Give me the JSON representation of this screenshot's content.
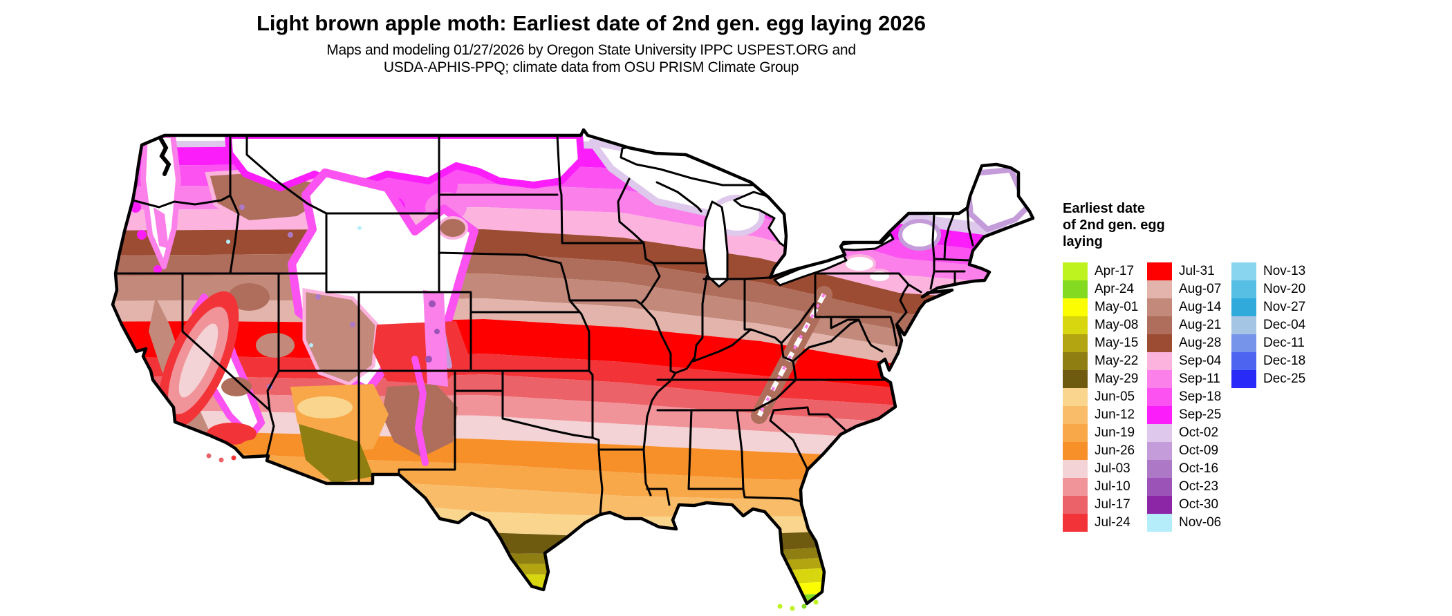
{
  "title": "Light brown apple moth: Earliest date of 2nd gen. egg laying 2026",
  "subtitle_line1": "Maps and modeling 01/27/2026 by Oregon State University IPPC USPEST.ORG and",
  "subtitle_line2": "USDA-APHIS-PPQ; climate data from OSU PRISM Climate Group",
  "legend": {
    "title_lines": [
      "Earliest date",
      "of 2nd gen. egg",
      "laying"
    ],
    "columns": [
      [
        {
          "label": "Apr-17",
          "color": "#bff31f"
        },
        {
          "label": "Apr-24",
          "color": "#83da20"
        },
        {
          "label": "May-01",
          "color": "#fdfd02"
        },
        {
          "label": "May-08",
          "color": "#d8d60e"
        },
        {
          "label": "May-15",
          "color": "#b2a511"
        },
        {
          "label": "May-22",
          "color": "#8f7e12"
        },
        {
          "label": "May-29",
          "color": "#6e5b10"
        },
        {
          "label": "Jun-05",
          "color": "#f9d58d"
        },
        {
          "label": "Jun-12",
          "color": "#f9bd6a"
        },
        {
          "label": "Jun-19",
          "color": "#f8a749"
        },
        {
          "label": "Jun-26",
          "color": "#f79029"
        },
        {
          "label": "Jul-03",
          "color": "#f3d3d5"
        },
        {
          "label": "Jul-10",
          "color": "#f0949a"
        },
        {
          "label": "Jul-17",
          "color": "#ec6269"
        },
        {
          "label": "Jul-24",
          "color": "#f23338"
        }
      ],
      [
        {
          "label": "Jul-31",
          "color": "#fe0000"
        },
        {
          "label": "Aug-07",
          "color": "#e2b4ac"
        },
        {
          "label": "Aug-14",
          "color": "#c38a7b"
        },
        {
          "label": "Aug-21",
          "color": "#af6e5b"
        },
        {
          "label": "Aug-28",
          "color": "#9d4c34"
        },
        {
          "label": "Sep-04",
          "color": "#fcb4df"
        },
        {
          "label": "Sep-11",
          "color": "#fb80ea"
        },
        {
          "label": "Sep-18",
          "color": "#fb52f1"
        },
        {
          "label": "Sep-25",
          "color": "#fb1efb"
        },
        {
          "label": "Oct-02",
          "color": "#dec8ec"
        },
        {
          "label": "Oct-09",
          "color": "#c49cda"
        },
        {
          "label": "Oct-16",
          "color": "#ad79c7"
        },
        {
          "label": "Oct-23",
          "color": "#9c53b7"
        },
        {
          "label": "Oct-30",
          "color": "#8d25a7"
        },
        {
          "label": "Nov-06",
          "color": "#b5eefa"
        }
      ],
      [
        {
          "label": "Nov-13",
          "color": "#89d5f0"
        },
        {
          "label": "Nov-20",
          "color": "#57bee4"
        },
        {
          "label": "Nov-27",
          "color": "#2faada"
        },
        {
          "label": "Dec-04",
          "color": "#a5c5e4"
        },
        {
          "label": "Dec-11",
          "color": "#7694ea"
        },
        {
          "label": "Dec-18",
          "color": "#4c64f0"
        },
        {
          "label": "Dec-25",
          "color": "#282af7"
        }
      ]
    ]
  },
  "map": {
    "region": "Contiguous United States",
    "kind": "choropleth of earliest date of 2nd generation egg laying",
    "no_data_color": "#ffffff",
    "border_color": "#000000"
  }
}
